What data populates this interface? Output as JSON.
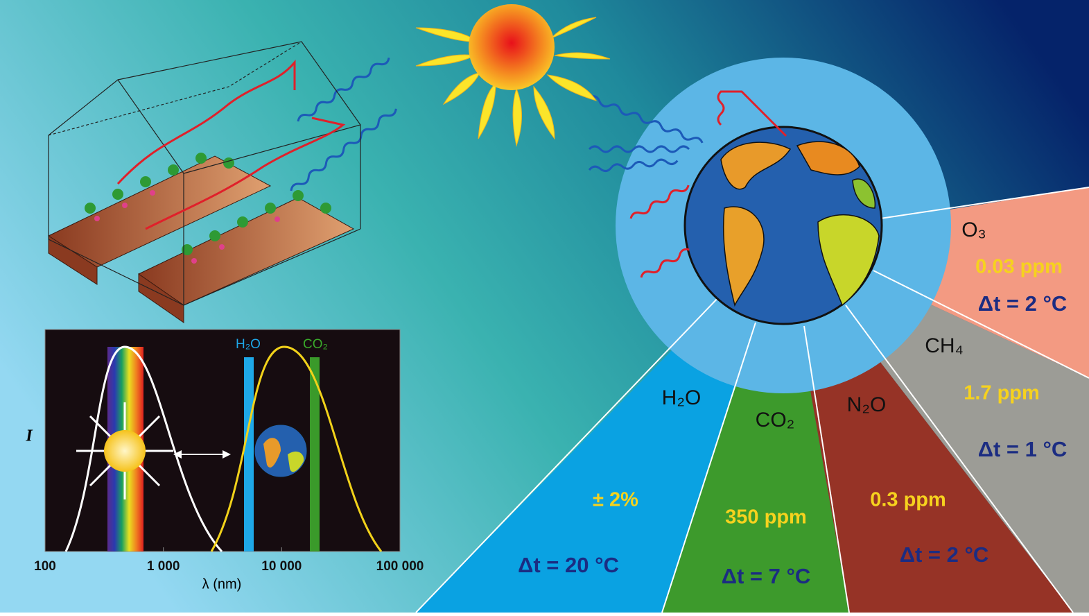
{
  "greenhouse_gases": [
    {
      "name": "O₃",
      "concentration": "0.03 ppm",
      "warming": "Δt = 2 °C"
    },
    {
      "name": "CH₄",
      "concentration": "1.7 ppm",
      "warming": "Δt = 1 °C"
    },
    {
      "name": "H₂O",
      "concentration": "± 2%",
      "warming": "Δt = 20 °C"
    },
    {
      "name": "CO₂",
      "concentration": "350 ppm",
      "warming": "Δt = 7 °C"
    },
    {
      "name": "N₂O",
      "concentration": "0.3 ppm",
      "warming": "Δt = 2 °C"
    }
  ],
  "spectrum": {
    "ylabel": "I",
    "xlabel": "λ (nm)",
    "xlim": [
      100,
      100000
    ],
    "xticks": [
      {
        "value": 100,
        "label": "100"
      },
      {
        "value": 1000,
        "label": "1 000"
      },
      {
        "value": 10000,
        "label": "10 000"
      },
      {
        "value": 100000,
        "label": "100 000"
      }
    ],
    "bands": [
      "H₂O",
      "CO₂"
    ]
  }
}
